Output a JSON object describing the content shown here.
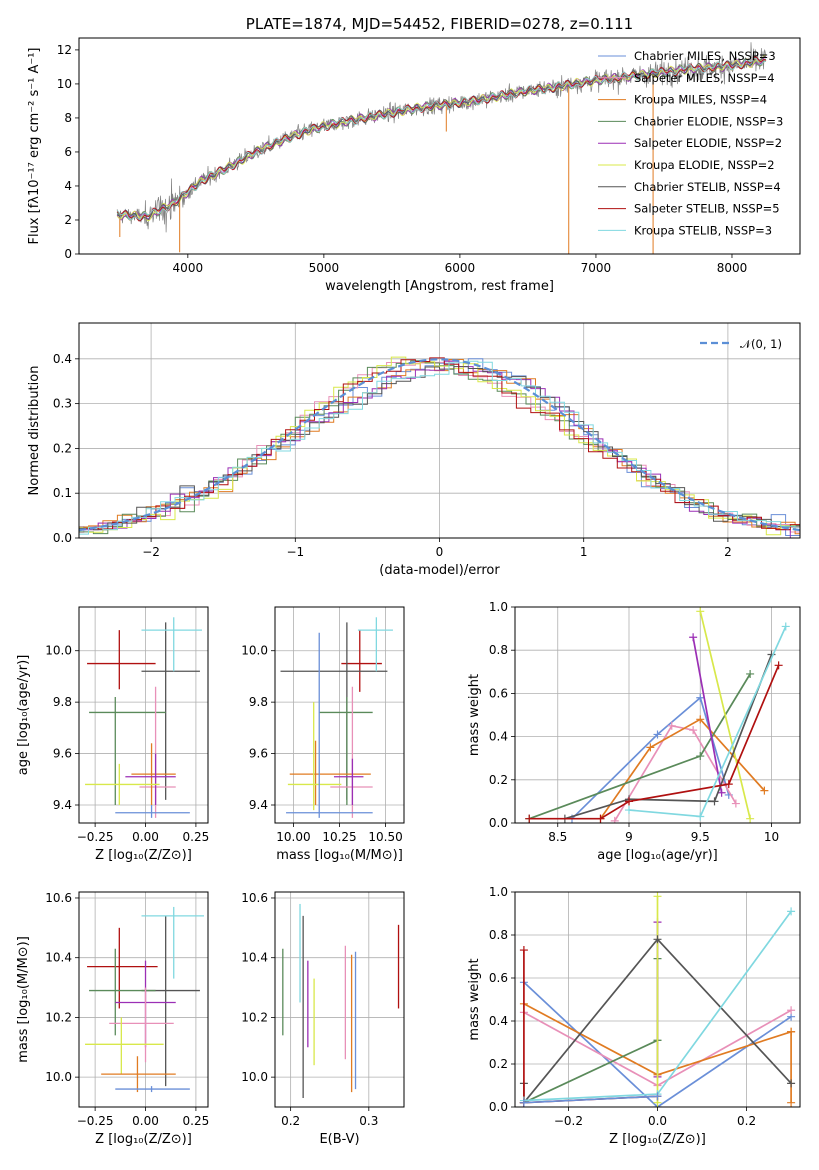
{
  "colors": {
    "chabrier_miles": "#6a8fd8",
    "salpeter_miles": "#e8c0e0",
    "kroupa_miles": "#e07b22",
    "chabrier_elodie": "#5a8a5a",
    "salpeter_elodie": "#9b2fb5",
    "kroupa_elodie": "#d8e84a",
    "chabrier_stelib": "#555555",
    "salpeter_stelib": "#b01010",
    "kroupa_stelib": "#80d8e0",
    "pink": "#e890b8",
    "normal": "#5b8fd6",
    "data": "#808080"
  },
  "chart_data": [
    {
      "id": "spectrum",
      "type": "line",
      "title": "PLATE=1874, MJD=54452, FIBERID=0278, z=0.111",
      "xlabel": "wavelength [Angstrom, rest frame]",
      "ylabel": "Flux [fλ10⁻¹⁷ erg cm⁻² s⁻¹ A⁻¹]",
      "xlim": [
        3200,
        8500
      ],
      "ylim": [
        0,
        12.7
      ],
      "xticks": [
        4000,
        5000,
        6000,
        7000,
        8000
      ],
      "yticks": [
        0,
        2,
        4,
        6,
        8,
        10,
        12
      ],
      "legend": [
        "Chabrier MILES, NSSP=3",
        "Salpeter MILES, NSSP=4",
        "Kroupa MILES, NSSP=4",
        "Chabrier ELODIE, NSSP=3",
        "Salpeter ELODIE, NSSP=2",
        "Kroupa ELODIE, NSSP=2",
        "Chabrier STELIB, NSSP=4",
        "Salpeter STELIB, NSSP=5",
        "Kroupa STELIB, NSSP=3"
      ],
      "continuum": {
        "x": [
          3500,
          3700,
          3900,
          4100,
          4300,
          4500,
          4700,
          4900,
          5100,
          5300,
          5500,
          5700,
          5900,
          6100,
          6300,
          6500,
          6700,
          6900,
          7100,
          7300,
          7500,
          7700,
          7900,
          8100,
          8250
        ],
        "y": [
          2.3,
          2.2,
          3.0,
          4.3,
          5.1,
          6.0,
          6.7,
          7.3,
          7.7,
          8.0,
          8.3,
          8.6,
          8.8,
          9.0,
          9.3,
          9.6,
          9.8,
          10.1,
          10.3,
          10.5,
          10.7,
          10.9,
          11.0,
          11.2,
          11.4
        ]
      }
    },
    {
      "id": "residuals",
      "type": "line",
      "xlabel": "(data-model)/error",
      "ylabel": "Normed distribution",
      "xlim": [
        -2.5,
        2.5
      ],
      "ylim": [
        0,
        0.48
      ],
      "xticks": [
        -2,
        -1,
        0,
        1,
        2
      ],
      "xticklabels": [
        "−2",
        "−1",
        "0",
        "1",
        "2"
      ],
      "yticks": [
        0.0,
        0.1,
        0.2,
        0.3,
        0.4
      ],
      "legend": [
        "𝒩(0, 1)"
      ]
    },
    {
      "id": "age-vs-Z",
      "type": "scatter",
      "xlabel": "Z [log₁₀(Z/Z⊙)]",
      "ylabel": "age  [log₁₀(age/yr)]",
      "xlim": [
        -0.33,
        0.31
      ],
      "ylim": [
        9.33,
        10.17
      ],
      "xticks": [
        -0.25,
        0.0,
        0.25
      ],
      "xticklabels": [
        "−0.25",
        "0.00",
        "0.25"
      ],
      "yticks": [
        9.4,
        9.6,
        9.8,
        10.0
      ],
      "points": [
        {
          "c": "salpeter_stelib",
          "x": -0.13,
          "xe": [
            -0.29,
            0.05
          ],
          "y": 9.95,
          "ye": [
            9.85,
            10.08
          ]
        },
        {
          "c": "chabrier_stelib",
          "x": 0.1,
          "xe": [
            -0.02,
            0.27
          ],
          "y": 9.92,
          "ye": [
            9.42,
            10.11
          ]
        },
        {
          "c": "kroupa_stelib",
          "x": 0.14,
          "xe": [
            -0.02,
            0.28
          ],
          "y": 10.08,
          "ye": [
            9.92,
            10.13
          ]
        },
        {
          "c": "chabrier_elodie",
          "x": -0.15,
          "xe": [
            -0.28,
            0.1
          ],
          "y": 9.76,
          "ye": [
            9.4,
            9.82
          ]
        },
        {
          "c": "pink",
          "x": 0.05,
          "xe": [
            -0.03,
            0.15
          ],
          "y": 9.47,
          "ye": [
            9.35,
            9.86
          ]
        },
        {
          "c": "kroupa_miles",
          "x": 0.03,
          "xe": [
            -0.07,
            0.15
          ],
          "y": 9.52,
          "ye": [
            9.4,
            9.64
          ]
        },
        {
          "c": "salpeter_elodie",
          "x": 0.05,
          "xe": [
            -0.1,
            0.15
          ],
          "y": 9.51,
          "ye": [
            9.4,
            9.6
          ]
        },
        {
          "c": "kroupa_elodie",
          "x": -0.13,
          "xe": [
            -0.3,
            0.07
          ],
          "y": 9.48,
          "ye": [
            9.4,
            9.56
          ]
        },
        {
          "c": "chabrier_miles",
          "x": 0.03,
          "xe": [
            -0.15,
            0.22
          ],
          "y": 9.37,
          "ye": [
            9.35,
            9.4
          ]
        }
      ]
    },
    {
      "id": "age-vs-mass",
      "type": "scatter",
      "xlabel": "mass [log₁₀(M/M⊙)]",
      "xlim": [
        9.9,
        10.6
      ],
      "ylim": [
        9.33,
        10.17
      ],
      "xticks": [
        10.0,
        10.25,
        10.5
      ],
      "xticklabels": [
        "10.00",
        "10.25",
        "10.50"
      ],
      "yticks": [
        9.4,
        9.6,
        9.8,
        10.0
      ],
      "points": [
        {
          "c": "salpeter_stelib",
          "x": 10.36,
          "xe": [
            10.26,
            10.48
          ],
          "y": 9.95,
          "ye": [
            9.84,
            10.08
          ]
        },
        {
          "c": "chabrier_stelib",
          "x": 10.29,
          "xe": [
            9.93,
            10.51
          ],
          "y": 9.92,
          "ye": [
            9.42,
            10.11
          ]
        },
        {
          "c": "kroupa_stelib",
          "x": 10.45,
          "xe": [
            10.35,
            10.54
          ],
          "y": 10.08,
          "ye": [
            9.92,
            10.13
          ]
        },
        {
          "c": "chabrier_elodie",
          "x": 10.29,
          "xe": [
            10.14,
            10.43
          ],
          "y": 9.76,
          "ye": [
            9.4,
            9.82
          ]
        },
        {
          "c": "pink",
          "x": 10.32,
          "xe": [
            10.2,
            10.43
          ],
          "y": 9.47,
          "ye": [
            9.35,
            9.86
          ]
        },
        {
          "c": "kroupa_miles",
          "x": 10.12,
          "xe": [
            9.98,
            10.42
          ],
          "y": 9.52,
          "ye": [
            9.4,
            9.65
          ]
        },
        {
          "c": "salpeter_elodie",
          "x": 10.32,
          "xe": [
            10.22,
            10.38
          ],
          "y": 9.51,
          "ye": [
            9.4,
            9.58
          ]
        },
        {
          "c": "kroupa_elodie",
          "x": 10.11,
          "xe": [
            9.97,
            10.26
          ],
          "y": 9.48,
          "ye": [
            9.38,
            9.8
          ]
        },
        {
          "c": "chabrier_miles",
          "x": 10.14,
          "xe": [
            9.96,
            10.43
          ],
          "y": 9.37,
          "ye": [
            9.35,
            10.07
          ]
        }
      ]
    },
    {
      "id": "mass-weight-vs-age",
      "type": "line",
      "xlabel": "age  [log₁₀(age/yr)]",
      "ylabel": "mass weight",
      "xlim": [
        8.2,
        10.2
      ],
      "ylim": [
        0,
        1.0
      ],
      "xticks": [
        8.5,
        9.0,
        9.5,
        10.0
      ],
      "yticks": [
        0.0,
        0.2,
        0.4,
        0.6,
        0.8,
        1.0
      ],
      "series": [
        {
          "c": "chabrier_miles",
          "x": [
            8.6,
            9.2,
            9.5,
            9.7
          ],
          "y": [
            0.02,
            0.41,
            0.58,
            0.13
          ]
        },
        {
          "c": "pink",
          "x": [
            8.9,
            9.3,
            9.45,
            9.75
          ],
          "y": [
            0.01,
            0.45,
            0.43,
            0.09
          ]
        },
        {
          "c": "kroupa_miles",
          "x": [
            8.8,
            9.15,
            9.5,
            9.95
          ],
          "y": [
            0.02,
            0.35,
            0.48,
            0.15
          ]
        },
        {
          "c": "chabrier_elodie",
          "x": [
            8.3,
            9.5,
            9.85
          ],
          "y": [
            0.02,
            0.31,
            0.69
          ]
        },
        {
          "c": "salpeter_elodie",
          "x": [
            9.45,
            9.65
          ],
          "y": [
            0.86,
            0.14
          ]
        },
        {
          "c": "kroupa_elodie",
          "x": [
            9.5,
            9.85
          ],
          "y": [
            0.98,
            0.02
          ]
        },
        {
          "c": "chabrier_stelib",
          "x": [
            8.55,
            9.0,
            9.6,
            10.0
          ],
          "y": [
            0.02,
            0.11,
            0.1,
            0.78
          ]
        },
        {
          "c": "salpeter_stelib",
          "x": [
            8.3,
            8.8,
            9.0,
            9.7,
            10.05
          ],
          "y": [
            0.02,
            0.02,
            0.1,
            0.18,
            0.73
          ]
        },
        {
          "c": "kroupa_stelib",
          "x": [
            9.0,
            9.5,
            10.1
          ],
          "y": [
            0.06,
            0.03,
            0.91
          ]
        }
      ]
    },
    {
      "id": "mass-vs-Z",
      "type": "scatter",
      "xlabel": "Z [log₁₀(Z/Z⊙)]",
      "ylabel": "mass [log₁₀(M/M⊙)]",
      "xlim": [
        -0.33,
        0.31
      ],
      "ylim": [
        9.9,
        10.62
      ],
      "xticks": [
        -0.25,
        0.0,
        0.25
      ],
      "xticklabels": [
        "−0.25",
        "0.00",
        "0.25"
      ],
      "yticks": [
        10.0,
        10.2,
        10.4,
        10.6
      ],
      "points": [
        {
          "c": "salpeter_stelib",
          "x": -0.13,
          "xe": [
            -0.29,
            0.06
          ],
          "y": 10.37,
          "ye": [
            10.23,
            10.5
          ]
        },
        {
          "c": "chabrier_stelib",
          "x": 0.1,
          "xe": [
            -0.02,
            0.27
          ],
          "y": 10.29,
          "ye": [
            9.97,
            10.54
          ]
        },
        {
          "c": "kroupa_stelib",
          "x": 0.14,
          "xe": [
            -0.02,
            0.29
          ],
          "y": 10.54,
          "ye": [
            10.33,
            10.57
          ]
        },
        {
          "c": "chabrier_elodie",
          "x": -0.15,
          "xe": [
            -0.28,
            0.05
          ],
          "y": 10.29,
          "ye": [
            10.14,
            10.43
          ]
        },
        {
          "c": "salpeter_elodie",
          "x": 0.0,
          "xe": [
            -0.15,
            0.15
          ],
          "y": 10.25,
          "ye": [
            10.1,
            10.39
          ]
        },
        {
          "c": "pink",
          "x": 0.0,
          "xe": [
            -0.18,
            0.14
          ],
          "y": 10.18,
          "ye": [
            10.05,
            10.3
          ]
        },
        {
          "c": "kroupa_elodie",
          "x": -0.12,
          "xe": [
            -0.3,
            0.09
          ],
          "y": 10.11,
          "ye": [
            10.01,
            10.2
          ]
        },
        {
          "c": "kroupa_miles",
          "x": -0.04,
          "xe": [
            -0.22,
            0.15
          ],
          "y": 10.01,
          "ye": [
            9.95,
            10.07
          ]
        },
        {
          "c": "chabrier_miles",
          "x": 0.03,
          "xe": [
            -0.15,
            0.22
          ],
          "y": 9.96,
          "ye": [
            9.95,
            9.97
          ]
        }
      ]
    },
    {
      "id": "mass-vs-ebv",
      "type": "scatter",
      "xlabel": "E(B-V)",
      "xlim": [
        0.18,
        0.345
      ],
      "ylim": [
        9.9,
        10.62
      ],
      "xticks": [
        0.2,
        0.3
      ],
      "yticks": [
        10.0,
        10.2,
        10.4,
        10.6
      ],
      "points": [
        {
          "c": "chabrier_elodie",
          "x": 0.19,
          "ye": [
            10.14,
            10.43
          ]
        },
        {
          "c": "kroupa_stelib",
          "x": 0.212,
          "ye": [
            10.25,
            10.58
          ]
        },
        {
          "c": "chabrier_stelib",
          "x": 0.216,
          "ye": [
            9.93,
            10.54
          ]
        },
        {
          "c": "salpeter_elodie",
          "x": 0.222,
          "ye": [
            10.1,
            10.39
          ]
        },
        {
          "c": "kroupa_elodie",
          "x": 0.23,
          "ye": [
            10.04,
            10.33
          ]
        },
        {
          "c": "pink",
          "x": 0.27,
          "ye": [
            10.06,
            10.44
          ]
        },
        {
          "c": "kroupa_miles",
          "x": 0.278,
          "ye": [
            9.95,
            10.41
          ]
        },
        {
          "c": "chabrier_miles",
          "x": 0.283,
          "ye": [
            9.96,
            10.42
          ]
        },
        {
          "c": "salpeter_stelib",
          "x": 0.338,
          "ye": [
            10.23,
            10.51
          ]
        }
      ]
    },
    {
      "id": "mass-weight-vs-Z",
      "type": "line",
      "xlabel": "Z [log₁₀(Z/Z⊙)]",
      "ylabel": "mass weight",
      "xlim": [
        -0.32,
        0.32
      ],
      "ylim": [
        0,
        1.0
      ],
      "xticks": [
        -0.2,
        0.0,
        0.2
      ],
      "xticklabels": [
        "−0.2",
        "0.0",
        "0.2"
      ],
      "yticks": [
        0.0,
        0.2,
        0.4,
        0.6,
        0.8,
        1.0
      ],
      "series": [
        {
          "c": "chabrier_miles",
          "x": [
            -0.3,
            0.0,
            0.3
          ],
          "y": [
            0.58,
            0.0,
            0.42
          ]
        },
        {
          "c": "pink",
          "x": [
            -0.3,
            0.0,
            0.3
          ],
          "y": [
            0.44,
            0.1,
            0.45
          ]
        },
        {
          "c": "kroupa_miles",
          "x": [
            -0.3,
            0.0,
            0.3
          ],
          "y": [
            0.48,
            0.15,
            0.35
          ]
        },
        {
          "c": "kroupa_miles",
          "x": [
            0.3,
            0.3
          ],
          "y": [
            0.35,
            0.02
          ]
        },
        {
          "c": "chabrier_elodie",
          "x": [
            -0.3,
            0.0
          ],
          "y": [
            0.02,
            0.31
          ]
        },
        {
          "c": "chabrier_elodie",
          "x": [
            0.0,
            0.0
          ],
          "y": [
            0.31,
            0.69
          ]
        },
        {
          "c": "salpeter_elodie",
          "x": [
            0.0,
            0.0
          ],
          "y": [
            0.14,
            0.86
          ]
        },
        {
          "c": "kroupa_elodie",
          "x": [
            0.0,
            0.0
          ],
          "y": [
            0.02,
            0.98
          ]
        },
        {
          "c": "chabrier_stelib",
          "x": [
            -0.3,
            0.0,
            0.3
          ],
          "y": [
            0.02,
            0.78,
            0.11
          ]
        },
        {
          "c": "chabrier_stelib",
          "x": [
            -0.3,
            -0.3
          ],
          "y": [
            0.02,
            0.11
          ]
        },
        {
          "c": "salpeter_stelib",
          "x": [
            -0.3,
            -0.3
          ],
          "y": [
            0.02,
            0.73
          ]
        },
        {
          "c": "salpeter_stelib",
          "x": [
            -0.3,
            0.0
          ],
          "y": [
            0.02,
            0.05
          ]
        },
        {
          "c": "kroupa_stelib",
          "x": [
            -0.3,
            0.0,
            0.3
          ],
          "y": [
            0.03,
            0.06,
            0.91
          ]
        },
        {
          "c": "chabrier_miles",
          "x": [
            -0.3,
            0.0
          ],
          "y": [
            0.02,
            0.05
          ]
        }
      ]
    }
  ]
}
